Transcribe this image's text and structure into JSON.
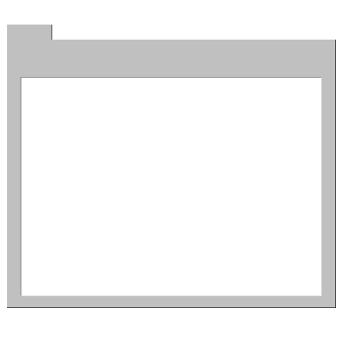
{
  "window": {
    "title": "",
    "tab_label": ""
  },
  "content": {
    "text": ""
  },
  "colors": {
    "panel": "#c0c0c0",
    "content": "#ffffff",
    "shadow": "#404040"
  },
  "icons": {
    "folder": "folder-icon"
  }
}
